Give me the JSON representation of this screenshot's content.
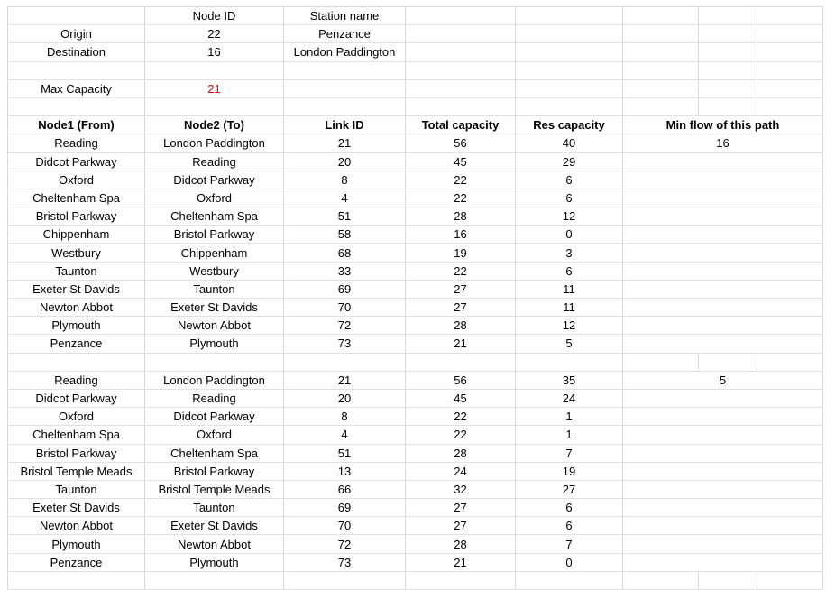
{
  "info": {
    "node_id_header": "Node ID",
    "station_name_header": "Station name",
    "origin_label": "Origin",
    "origin_id": "22",
    "origin_name": "Penzance",
    "destination_label": "Destination",
    "destination_id": "16",
    "destination_name": "London Paddington",
    "max_capacity_label": "Max Capacity",
    "max_capacity_value": "21",
    "highlight_color": "#e00000"
  },
  "table": {
    "headers": [
      "Node1 (From)",
      "Node2 (To)",
      "Link ID",
      "Total capacity",
      "Res capacity",
      "Min flow of this path"
    ],
    "paths": [
      {
        "min_flow": "16",
        "rows": [
          [
            "Reading",
            "London Paddington",
            "21",
            "56",
            "40"
          ],
          [
            "Didcot Parkway",
            "Reading",
            "20",
            "45",
            "29"
          ],
          [
            "Oxford",
            "Didcot Parkway",
            "8",
            "22",
            "6"
          ],
          [
            "Cheltenham Spa",
            "Oxford",
            "4",
            "22",
            "6"
          ],
          [
            "Bristol Parkway",
            "Cheltenham Spa",
            "51",
            "28",
            "12"
          ],
          [
            "Chippenham",
            "Bristol Parkway",
            "58",
            "16",
            "0"
          ],
          [
            "Westbury",
            "Chippenham",
            "68",
            "19",
            "3"
          ],
          [
            "Taunton",
            "Westbury",
            "33",
            "22",
            "6"
          ],
          [
            "Exeter St Davids",
            "Taunton",
            "69",
            "27",
            "11"
          ],
          [
            "Newton Abbot",
            "Exeter St Davids",
            "70",
            "27",
            "11"
          ],
          [
            "Plymouth",
            "Newton Abbot",
            "72",
            "28",
            "12"
          ],
          [
            "Penzance",
            "Plymouth",
            "73",
            "21",
            "5"
          ]
        ]
      },
      {
        "min_flow": "5",
        "rows": [
          [
            "Reading",
            "London Paddington",
            "21",
            "56",
            "35"
          ],
          [
            "Didcot Parkway",
            "Reading",
            "20",
            "45",
            "24"
          ],
          [
            "Oxford",
            "Didcot Parkway",
            "8",
            "22",
            "1"
          ],
          [
            "Cheltenham Spa",
            "Oxford",
            "4",
            "22",
            "1"
          ],
          [
            "Bristol Parkway",
            "Cheltenham Spa",
            "51",
            "28",
            "7"
          ],
          [
            "Bristol Temple Meads",
            "Bristol Parkway",
            "13",
            "24",
            "19"
          ],
          [
            "Taunton",
            "Bristol Temple Meads",
            "66",
            "32",
            "27"
          ],
          [
            "Exeter St Davids",
            "Taunton",
            "69",
            "27",
            "6"
          ],
          [
            "Newton Abbot",
            "Exeter St Davids",
            "70",
            "27",
            "6"
          ],
          [
            "Plymouth",
            "Newton Abbot",
            "72",
            "28",
            "7"
          ],
          [
            "Penzance",
            "Plymouth",
            "73",
            "21",
            "0"
          ]
        ]
      }
    ]
  }
}
